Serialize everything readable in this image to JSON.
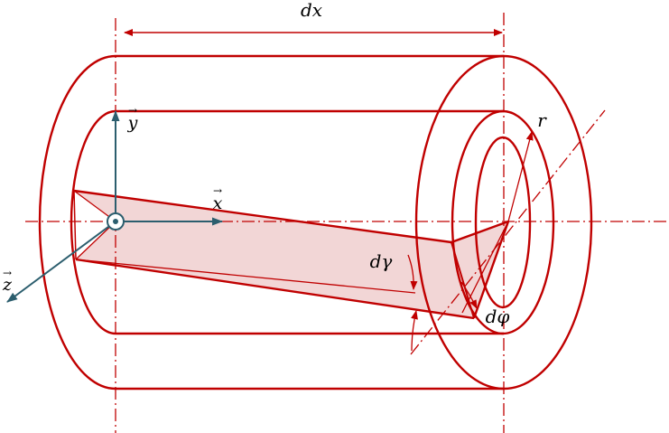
{
  "labels": {
    "dx": "dx",
    "y": "y",
    "x": "x",
    "z": "z",
    "r": "r",
    "dgamma": "dγ",
    "dphi": "dφ",
    "vec_arrow": "→"
  },
  "colors": {
    "red": "#c00000",
    "fill": "#f2d6d6",
    "axis": "#2c5e6e",
    "text": "#000000"
  }
}
